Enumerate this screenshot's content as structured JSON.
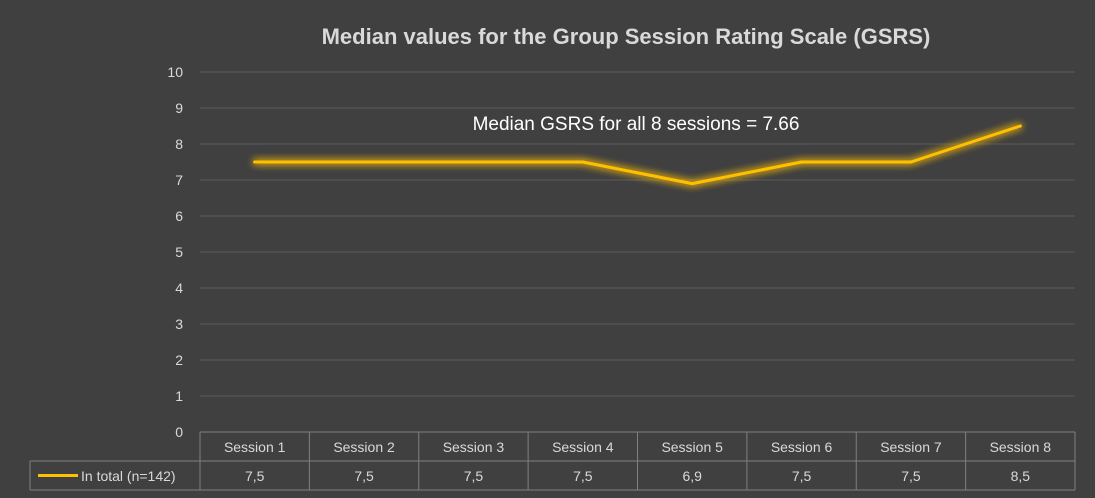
{
  "chart_data": {
    "type": "line",
    "title": "Median values for the Group Session Rating Scale (GSRS)",
    "annotation": "Median GSRS for all 8 sessions = 7.66",
    "categories": [
      "Session 1",
      "Session 2",
      "Session 3",
      "Session 4",
      "Session 5",
      "Session 6",
      "Session 7",
      "Session 8"
    ],
    "series": [
      {
        "name": "In total (n=142)",
        "values": [
          7.5,
          7.5,
          7.5,
          7.5,
          6.9,
          7.5,
          7.5,
          8.5
        ],
        "labels": [
          "7,5",
          "7,5",
          "7,5",
          "7,5",
          "6,9",
          "7,5",
          "7,5",
          "8,5"
        ],
        "color": "#ffc000"
      }
    ],
    "yticks": [
      "0",
      "1",
      "2",
      "3",
      "4",
      "5",
      "6",
      "7",
      "8",
      "9",
      "10"
    ],
    "ylim": [
      0,
      10
    ],
    "grid": true,
    "legend": "data-table",
    "colors": {
      "background": "#404040",
      "gridline": "#5a5a5a",
      "text": "#d9d9d9",
      "table_border": "#7f7f7f"
    }
  }
}
